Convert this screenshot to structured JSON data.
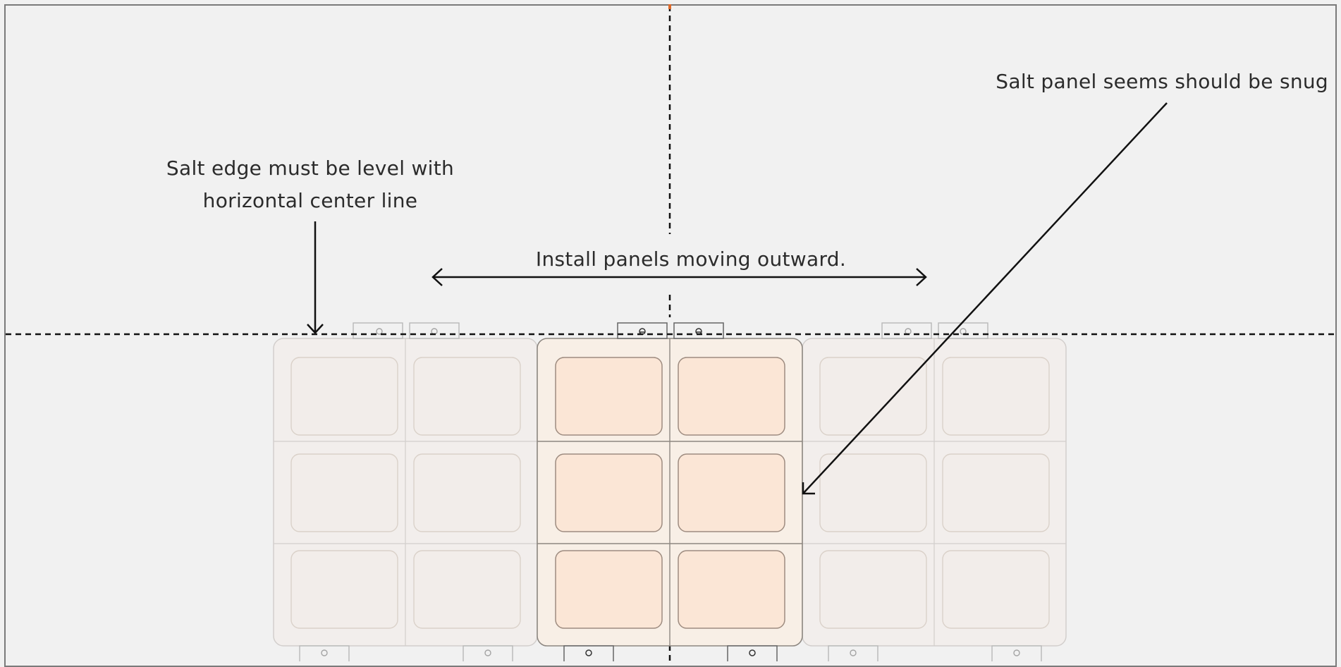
{
  "annotations": {
    "level": {
      "line1": "Salt edge must be level with",
      "line2": "horizontal center line"
    },
    "install": "Install panels moving outward.",
    "snug": "Salt panel seems should be snug"
  },
  "colors": {
    "background": "#f1f1f1",
    "frame": "#7a7a7a",
    "guide": "#111111",
    "center_mark": "#e06a2a",
    "panel_active_fill": "#f8efe6",
    "cell_active_fill": "#fbe6d6",
    "panel_faded_fill": "#f4ede8",
    "cell_faded_fill": "#f4ebe5"
  },
  "icons": {
    "arrows": [
      "down-arrow-icon",
      "double-arrow-icon",
      "diagonal-arrow-icon"
    ]
  }
}
